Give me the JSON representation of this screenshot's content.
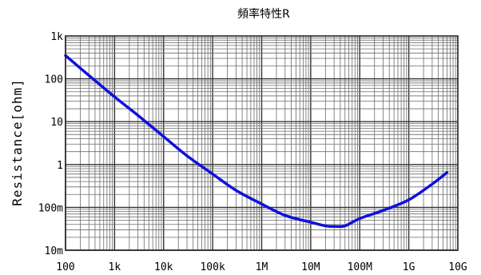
{
  "chart_data": {
    "type": "line",
    "title": "頻率特性R",
    "ylabel": "Resistance[ohm]",
    "xlabel": "",
    "x_scale": "log",
    "y_scale": "log",
    "xlim": [
      100,
      10000000000
    ],
    "ylim": [
      0.01,
      1000
    ],
    "grid": true,
    "x_ticks": [
      {
        "value": 100,
        "label": "100"
      },
      {
        "value": 1000,
        "label": "1k"
      },
      {
        "value": 10000,
        "label": "10k"
      },
      {
        "value": 100000,
        "label": "100k"
      },
      {
        "value": 1000000,
        "label": "1M"
      },
      {
        "value": 10000000,
        "label": "10M"
      },
      {
        "value": 100000000,
        "label": "100M"
      },
      {
        "value": 1000000000,
        "label": "1G"
      },
      {
        "value": 10000000000,
        "label": "10G"
      }
    ],
    "y_ticks": [
      {
        "value": 0.01,
        "label": "10m"
      },
      {
        "value": 0.1,
        "label": "100m"
      },
      {
        "value": 1,
        "label": "1"
      },
      {
        "value": 10,
        "label": "10"
      },
      {
        "value": 100,
        "label": "100"
      },
      {
        "value": 1000,
        "label": "1k"
      }
    ],
    "series": [
      {
        "color": "#1010dd",
        "x": [
          100,
          300,
          1000,
          3000,
          10000,
          30000,
          100000,
          300000,
          1000000,
          3000000,
          10000000,
          20000000,
          30000000,
          50000000,
          100000000,
          300000000,
          1000000000,
          3000000000,
          6000000000
        ],
        "y": [
          350,
          120,
          38,
          14,
          4.5,
          1.6,
          0.6,
          0.25,
          0.12,
          0.065,
          0.045,
          0.037,
          0.036,
          0.037,
          0.055,
          0.085,
          0.15,
          0.35,
          0.65
        ]
      }
    ]
  }
}
